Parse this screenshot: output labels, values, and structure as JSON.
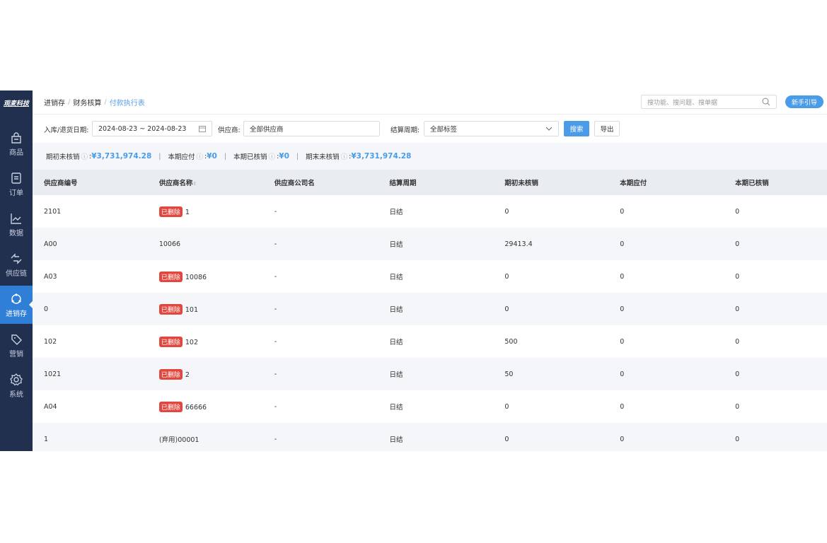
{
  "sidebar": {
    "logo": "观麦科技",
    "items": [
      {
        "label": "商品",
        "icon": "shopping-bag-icon"
      },
      {
        "label": "订单",
        "icon": "order-icon"
      },
      {
        "label": "数据",
        "icon": "chart-icon"
      },
      {
        "label": "供应链",
        "icon": "exchange-icon"
      },
      {
        "label": "进销存",
        "icon": "inventory-icon",
        "active": true
      },
      {
        "label": "营销",
        "icon": "tag-icon"
      },
      {
        "label": "系统",
        "icon": "gear-icon"
      }
    ]
  },
  "header": {
    "breadcrumb": [
      "进销存",
      "财务核算",
      "付款执行表"
    ],
    "search_placeholder": "搜功能、搜问题、搜单据",
    "guide_label": "新手引导"
  },
  "filters": {
    "date_label": "入库/退货日期:",
    "date_value": "2024-08-23 ~ 2024-08-23",
    "supplier_label": "供应商:",
    "supplier_value": "全部供应商",
    "cycle_label": "结算周期:",
    "cycle_value": "全部标签",
    "search_label": "搜索",
    "export_label": "导出"
  },
  "summary": [
    {
      "label": "期初未核销",
      "value": "¥3,731,974.28"
    },
    {
      "label": "本期应付",
      "value": "¥0"
    },
    {
      "label": "本期已核销",
      "value": "¥0"
    },
    {
      "label": "期末未核销",
      "value": "¥3,731,974.28"
    }
  ],
  "table": {
    "columns": [
      "供应商编号",
      "供应商名称",
      "供应商公司名",
      "结算周期",
      "期初未核销",
      "本期应付",
      "本期已核销"
    ],
    "deleted_tag": "已删除",
    "rows": [
      {
        "code": "2101",
        "deleted": true,
        "name": "1",
        "company": "-",
        "cycle": "日结",
        "opening": "0",
        "payable": "0",
        "settled": "0"
      },
      {
        "code": "A00",
        "deleted": false,
        "name": "10066",
        "company": "-",
        "cycle": "日结",
        "opening": "29413.4",
        "payable": "0",
        "settled": "0"
      },
      {
        "code": "A03",
        "deleted": true,
        "name": "10086",
        "company": "-",
        "cycle": "日结",
        "opening": "0",
        "payable": "0",
        "settled": "0"
      },
      {
        "code": "0",
        "deleted": true,
        "name": "101",
        "company": "-",
        "cycle": "日结",
        "opening": "0",
        "payable": "0",
        "settled": "0"
      },
      {
        "code": "102",
        "deleted": true,
        "name": "102",
        "company": "-",
        "cycle": "日结",
        "opening": "500",
        "payable": "0",
        "settled": "0"
      },
      {
        "code": "1021",
        "deleted": true,
        "name": "2",
        "company": "-",
        "cycle": "日结",
        "opening": "50",
        "payable": "0",
        "settled": "0"
      },
      {
        "code": "A04",
        "deleted": true,
        "name": "66666",
        "company": "-",
        "cycle": "日结",
        "opening": "0",
        "payable": "0",
        "settled": "0"
      },
      {
        "code": "1",
        "deleted": false,
        "name": "(弃用)00001",
        "company": "-",
        "cycle": "日结",
        "opening": "0",
        "payable": "0",
        "settled": "0"
      }
    ]
  }
}
